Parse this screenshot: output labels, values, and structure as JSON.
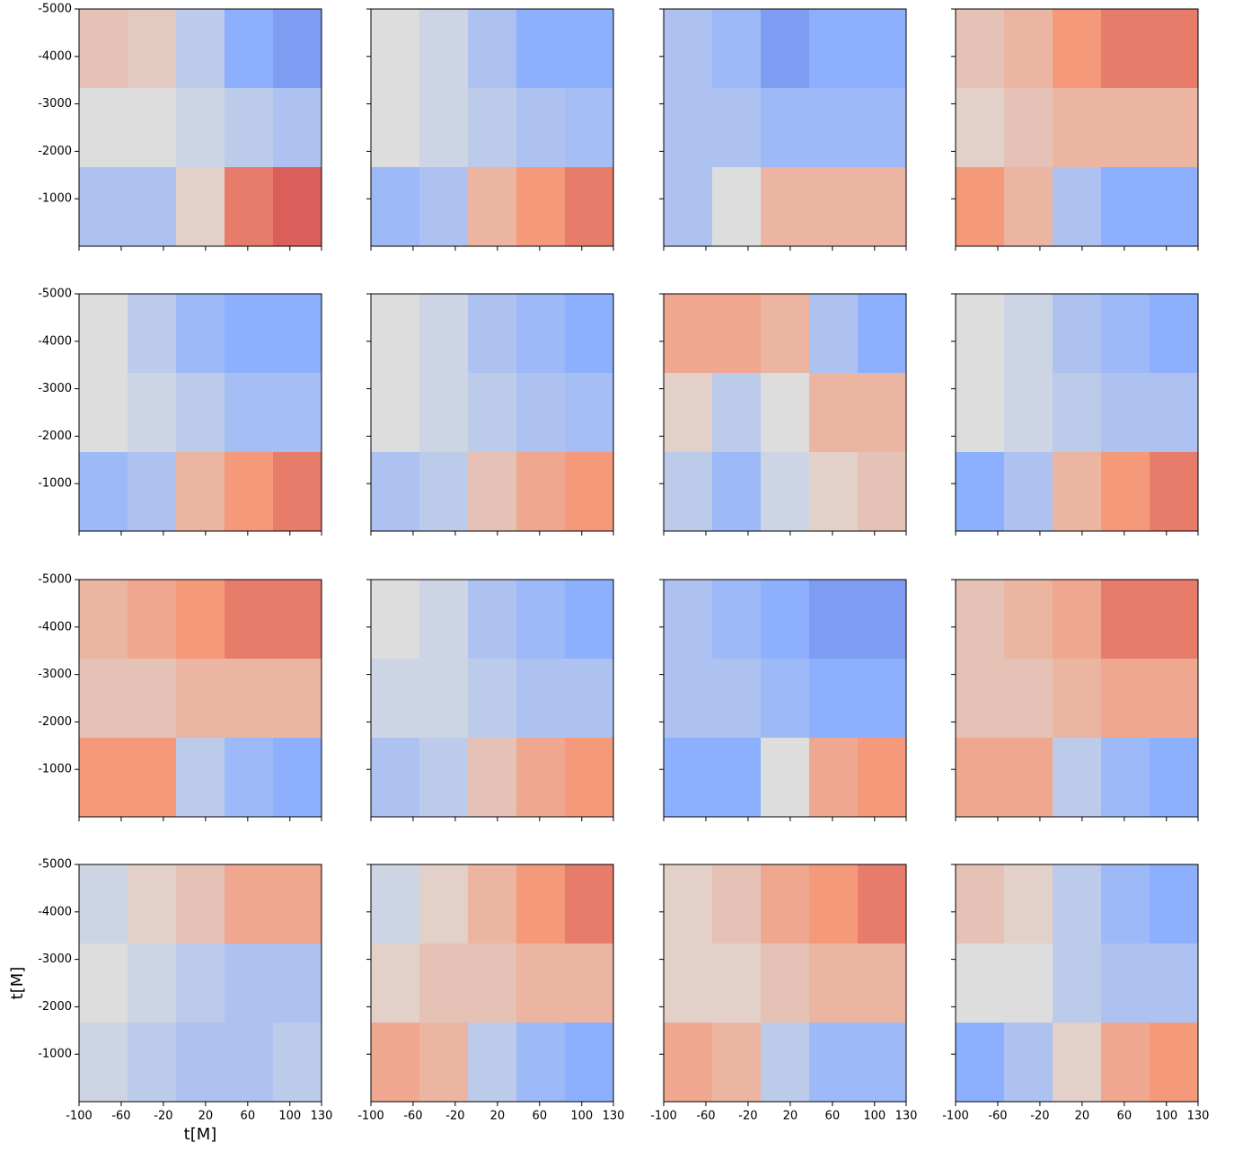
{
  "chart_data": [
    {
      "type": "heatmap",
      "values": [
        [
          0.2,
          0.15,
          -0.2,
          -0.5,
          -0.6
        ],
        [
          0,
          0,
          -0.1,
          -0.2,
          -0.3
        ],
        [
          -0.3,
          -0.3,
          0.1,
          0.6,
          0.7
        ]
      ],
      "xlim": [
        -100,
        130
      ],
      "ylim": [
        -5000,
        0
      ],
      "yinvert": true,
      "xticks": [
        -100,
        -60,
        -20,
        20,
        60,
        100,
        130
      ],
      "yticks": [
        -5000,
        -4000,
        -3000,
        -2000,
        -1000
      ],
      "vlim": [
        -1,
        1
      ],
      "colormap": "coolwarm",
      "show_xticklabels": false,
      "show_yticklabels": true
    },
    {
      "type": "heatmap",
      "values": [
        [
          0,
          -0.1,
          -0.3,
          -0.5,
          -0.5
        ],
        [
          0,
          -0.1,
          -0.2,
          -0.3,
          -0.35
        ],
        [
          -0.4,
          -0.3,
          0.3,
          0.5,
          0.6
        ]
      ],
      "xlim": [
        -100,
        130
      ],
      "ylim": [
        -5000,
        0
      ],
      "yinvert": true,
      "xticks": [
        -100,
        -60,
        -20,
        20,
        60,
        100,
        130
      ],
      "yticks": [
        -5000,
        -4000,
        -3000,
        -2000,
        -1000
      ],
      "vlim": [
        -1,
        1
      ],
      "colormap": "coolwarm",
      "show_xticklabels": false,
      "show_yticklabels": false
    },
    {
      "type": "heatmap",
      "values": [
        [
          -0.3,
          -0.4,
          -0.6,
          -0.5,
          -0.5
        ],
        [
          -0.3,
          -0.3,
          -0.4,
          -0.4,
          -0.4
        ],
        [
          -0.3,
          0,
          0.3,
          0.3,
          0.3
        ]
      ],
      "xlim": [
        -100,
        130
      ],
      "ylim": [
        -5000,
        0
      ],
      "yinvert": true,
      "xticks": [
        -100,
        -60,
        -20,
        20,
        60,
        100,
        130
      ],
      "yticks": [
        -5000,
        -4000,
        -3000,
        -2000,
        -1000
      ],
      "vlim": [
        -1,
        1
      ],
      "colormap": "coolwarm",
      "show_xticklabels": false,
      "show_yticklabels": false
    },
    {
      "type": "heatmap",
      "values": [
        [
          0.2,
          0.3,
          0.5,
          0.6,
          0.6
        ],
        [
          0.1,
          0.2,
          0.3,
          0.3,
          0.3
        ],
        [
          0.5,
          0.3,
          -0.3,
          -0.5,
          -0.5
        ]
      ],
      "xlim": [
        -100,
        130
      ],
      "ylim": [
        -5000,
        0
      ],
      "yinvert": true,
      "xticks": [
        -100,
        -60,
        -20,
        20,
        60,
        100,
        130
      ],
      "yticks": [
        -5000,
        -4000,
        -3000,
        -2000,
        -1000
      ],
      "vlim": [
        -1,
        1
      ],
      "colormap": "coolwarm",
      "show_xticklabels": false,
      "show_yticklabels": false
    },
    {
      "type": "heatmap",
      "values": [
        [
          0,
          -0.2,
          -0.4,
          -0.5,
          -0.5
        ],
        [
          0,
          -0.1,
          -0.2,
          -0.35,
          -0.35
        ],
        [
          -0.4,
          -0.3,
          0.3,
          0.5,
          0.6
        ]
      ],
      "xlim": [
        -100,
        130
      ],
      "ylim": [
        -5000,
        0
      ],
      "yinvert": true,
      "xticks": [
        -100,
        -60,
        -20,
        20,
        60,
        100,
        130
      ],
      "yticks": [
        -5000,
        -4000,
        -3000,
        -2000,
        -1000
      ],
      "vlim": [
        -1,
        1
      ],
      "colormap": "coolwarm",
      "show_xticklabels": false,
      "show_yticklabels": true
    },
    {
      "type": "heatmap",
      "values": [
        [
          0,
          -0.1,
          -0.3,
          -0.4,
          -0.5
        ],
        [
          0,
          -0.1,
          -0.2,
          -0.3,
          -0.35
        ],
        [
          -0.3,
          -0.2,
          0.2,
          0.4,
          0.5
        ]
      ],
      "xlim": [
        -100,
        130
      ],
      "ylim": [
        -5000,
        0
      ],
      "yinvert": true,
      "xticks": [
        -100,
        -60,
        -20,
        20,
        60,
        100,
        130
      ],
      "yticks": [
        -5000,
        -4000,
        -3000,
        -2000,
        -1000
      ],
      "vlim": [
        -1,
        1
      ],
      "colormap": "coolwarm",
      "show_xticklabels": false,
      "show_yticklabels": false
    },
    {
      "type": "heatmap",
      "values": [
        [
          0.4,
          0.4,
          0.3,
          -0.3,
          -0.5
        ],
        [
          0.1,
          -0.2,
          0,
          0.3,
          0.3
        ],
        [
          -0.2,
          -0.4,
          -0.1,
          0.1,
          0.2
        ]
      ],
      "xlim": [
        -100,
        130
      ],
      "ylim": [
        -5000,
        0
      ],
      "yinvert": true,
      "xticks": [
        -100,
        -60,
        -20,
        20,
        60,
        100,
        130
      ],
      "yticks": [
        -5000,
        -4000,
        -3000,
        -2000,
        -1000
      ],
      "vlim": [
        -1,
        1
      ],
      "colormap": "coolwarm",
      "show_xticklabels": false,
      "show_yticklabels": false
    },
    {
      "type": "heatmap",
      "values": [
        [
          0,
          -0.1,
          -0.3,
          -0.4,
          -0.5
        ],
        [
          0,
          -0.1,
          -0.2,
          -0.3,
          -0.3
        ],
        [
          -0.5,
          -0.3,
          0.3,
          0.5,
          0.6
        ]
      ],
      "xlim": [
        -100,
        130
      ],
      "ylim": [
        -5000,
        0
      ],
      "yinvert": true,
      "xticks": [
        -100,
        -60,
        -20,
        20,
        60,
        100,
        130
      ],
      "yticks": [
        -5000,
        -4000,
        -3000,
        -2000,
        -1000
      ],
      "vlim": [
        -1,
        1
      ],
      "colormap": "coolwarm",
      "show_xticklabels": false,
      "show_yticklabels": false
    },
    {
      "type": "heatmap",
      "values": [
        [
          0.3,
          0.4,
          0.5,
          0.6,
          0.6
        ],
        [
          0.2,
          0.2,
          0.3,
          0.3,
          0.3
        ],
        [
          0.5,
          0.5,
          -0.2,
          -0.4,
          -0.5
        ]
      ],
      "xlim": [
        -100,
        130
      ],
      "ylim": [
        -5000,
        0
      ],
      "yinvert": true,
      "xticks": [
        -100,
        -60,
        -20,
        20,
        60,
        100,
        130
      ],
      "yticks": [
        -5000,
        -4000,
        -3000,
        -2000,
        -1000
      ],
      "vlim": [
        -1,
        1
      ],
      "colormap": "coolwarm",
      "show_xticklabels": false,
      "show_yticklabels": true
    },
    {
      "type": "heatmap",
      "values": [
        [
          0,
          -0.1,
          -0.3,
          -0.4,
          -0.5
        ],
        [
          -0.1,
          -0.1,
          -0.2,
          -0.3,
          -0.3
        ],
        [
          -0.3,
          -0.2,
          0.2,
          0.4,
          0.5
        ]
      ],
      "xlim": [
        -100,
        130
      ],
      "ylim": [
        -5000,
        0
      ],
      "yinvert": true,
      "xticks": [
        -100,
        -60,
        -20,
        20,
        60,
        100,
        130
      ],
      "yticks": [
        -5000,
        -4000,
        -3000,
        -2000,
        -1000
      ],
      "vlim": [
        -1,
        1
      ],
      "colormap": "coolwarm",
      "show_xticklabels": false,
      "show_yticklabels": false
    },
    {
      "type": "heatmap",
      "values": [
        [
          -0.3,
          -0.4,
          -0.5,
          -0.6,
          -0.6
        ],
        [
          -0.3,
          -0.3,
          -0.4,
          -0.5,
          -0.5
        ],
        [
          -0.5,
          -0.5,
          0,
          0.4,
          0.5
        ]
      ],
      "xlim": [
        -100,
        130
      ],
      "ylim": [
        -5000,
        0
      ],
      "yinvert": true,
      "xticks": [
        -100,
        -60,
        -20,
        20,
        60,
        100,
        130
      ],
      "yticks": [
        -5000,
        -4000,
        -3000,
        -2000,
        -1000
      ],
      "vlim": [
        -1,
        1
      ],
      "colormap": "coolwarm",
      "show_xticklabels": false,
      "show_yticklabels": false
    },
    {
      "type": "heatmap",
      "values": [
        [
          0.2,
          0.3,
          0.4,
          0.6,
          0.6
        ],
        [
          0.2,
          0.2,
          0.3,
          0.4,
          0.4
        ],
        [
          0.4,
          0.4,
          -0.2,
          -0.4,
          -0.5
        ]
      ],
      "xlim": [
        -100,
        130
      ],
      "ylim": [
        -5000,
        0
      ],
      "yinvert": true,
      "xticks": [
        -100,
        -60,
        -20,
        20,
        60,
        100,
        130
      ],
      "yticks": [
        -5000,
        -4000,
        -3000,
        -2000,
        -1000
      ],
      "vlim": [
        -1,
        1
      ],
      "colormap": "coolwarm",
      "show_xticklabels": false,
      "show_yticklabels": false
    },
    {
      "type": "heatmap",
      "values": [
        [
          -0.1,
          0.1,
          0.2,
          0.4,
          0.4
        ],
        [
          0,
          -0.1,
          -0.2,
          -0.3,
          -0.3
        ],
        [
          -0.1,
          -0.2,
          -0.3,
          -0.3,
          -0.2
        ]
      ],
      "xlim": [
        -100,
        130
      ],
      "ylim": [
        -5000,
        0
      ],
      "yinvert": true,
      "xticks": [
        -100,
        -60,
        -20,
        20,
        60,
        100,
        130
      ],
      "yticks": [
        -5000,
        -4000,
        -3000,
        -2000,
        -1000
      ],
      "vlim": [
        -1,
        1
      ],
      "colormap": "coolwarm",
      "show_xticklabels": true,
      "show_yticklabels": true,
      "xlabel": "t[M]",
      "ylabel": "t[M]"
    },
    {
      "type": "heatmap",
      "values": [
        [
          -0.1,
          0.1,
          0.3,
          0.5,
          0.6
        ],
        [
          0.1,
          0.2,
          0.2,
          0.3,
          0.3
        ],
        [
          0.4,
          0.3,
          -0.2,
          -0.4,
          -0.5
        ]
      ],
      "xlim": [
        -100,
        130
      ],
      "ylim": [
        -5000,
        0
      ],
      "yinvert": true,
      "xticks": [
        -100,
        -60,
        -20,
        20,
        60,
        100,
        130
      ],
      "yticks": [
        -5000,
        -4000,
        -3000,
        -2000,
        -1000
      ],
      "vlim": [
        -1,
        1
      ],
      "colormap": "coolwarm",
      "show_xticklabels": true,
      "show_yticklabels": false
    },
    {
      "type": "heatmap",
      "values": [
        [
          0.1,
          0.2,
          0.4,
          0.5,
          0.6
        ],
        [
          0.1,
          0.1,
          0.2,
          0.3,
          0.3
        ],
        [
          0.4,
          0.3,
          -0.2,
          -0.4,
          -0.4
        ]
      ],
      "xlim": [
        -100,
        130
      ],
      "ylim": [
        -5000,
        0
      ],
      "yinvert": true,
      "xticks": [
        -100,
        -60,
        -20,
        20,
        60,
        100,
        130
      ],
      "yticks": [
        -5000,
        -4000,
        -3000,
        -2000,
        -1000
      ],
      "vlim": [
        -1,
        1
      ],
      "colormap": "coolwarm",
      "show_xticklabels": true,
      "show_yticklabels": false
    },
    {
      "type": "heatmap",
      "values": [
        [
          0.2,
          0.1,
          -0.2,
          -0.4,
          -0.5
        ],
        [
          0,
          0,
          -0.2,
          -0.3,
          -0.3
        ],
        [
          -0.5,
          -0.3,
          0.1,
          0.4,
          0.5
        ]
      ],
      "xlim": [
        -100,
        130
      ],
      "ylim": [
        -5000,
        0
      ],
      "yinvert": true,
      "xticks": [
        -100,
        -60,
        -20,
        20,
        60,
        100,
        130
      ],
      "yticks": [
        -5000,
        -4000,
        -3000,
        -2000,
        -1000
      ],
      "vlim": [
        -1,
        1
      ],
      "colormap": "coolwarm",
      "show_xticklabels": true,
      "show_yticklabels": false
    }
  ]
}
